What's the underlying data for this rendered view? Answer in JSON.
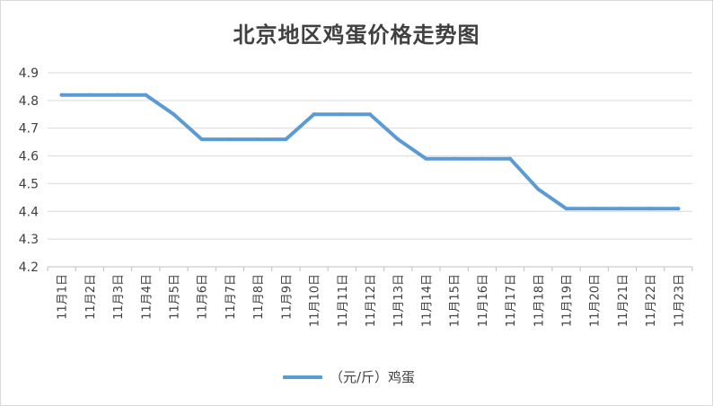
{
  "chart_data": {
    "type": "line",
    "title": "北京地区鸡蛋价格走势图",
    "categories": [
      "11月1日",
      "11月2日",
      "11月3日",
      "11月4日",
      "11月5日",
      "11月6日",
      "11月7日",
      "11月8日",
      "11月9日",
      "11月10日",
      "11月11日",
      "11月12日",
      "11月13日",
      "11月14日",
      "11月15日",
      "11月16日",
      "11月17日",
      "11月18日",
      "11月19日",
      "11月20日",
      "11月21日",
      "11月22日",
      "11月23日"
    ],
    "series": [
      {
        "name": "（元/斤）鸡蛋",
        "values": [
          4.82,
          4.82,
          4.82,
          4.82,
          4.75,
          4.66,
          4.66,
          4.66,
          4.66,
          4.75,
          4.75,
          4.75,
          4.66,
          4.59,
          4.59,
          4.59,
          4.59,
          4.48,
          4.41,
          4.41,
          4.41,
          4.41,
          4.41
        ],
        "color": "#5b9bd5"
      }
    ],
    "ylim": [
      4.2,
      4.9
    ],
    "yticks": [
      "4.2",
      "4.3",
      "4.4",
      "4.5",
      "4.6",
      "4.7",
      "4.8",
      "4.9"
    ],
    "grid": true,
    "legend_position": "bottom",
    "xlabel": "",
    "ylabel": ""
  }
}
